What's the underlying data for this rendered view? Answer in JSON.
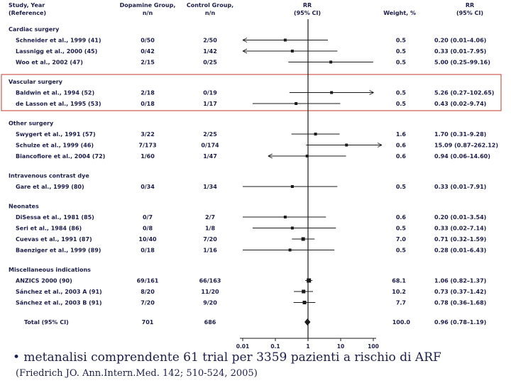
{
  "chart_data": {
    "type": "forest",
    "header": {
      "study_line1": "Study, Year",
      "study_line2": "(Reference)",
      "dop_line1": "Dopamine Group,",
      "dop_line2": "n/n",
      "ctl_line1": "Control Group,",
      "ctl_line2": "n/n",
      "rr_line1": "RR",
      "rr_line2": "(95% CI)",
      "weight": "Weight, %",
      "rrci_line1": "RR",
      "rrci_line2": "(95% CI)"
    },
    "groups": [
      {
        "name": "Cardiac surgery",
        "studies": [
          {
            "label": "Schneider et al., 1999 (41)",
            "dopamine": "0/50",
            "control": "2/50",
            "weight": "0.5",
            "ci_text": "0.20 (0.01–4.06)",
            "rr": 0.2,
            "lo": 0.01,
            "hi": 4.06,
            "arrow_lo": true,
            "arrow_hi": false
          },
          {
            "label": "Lassnigg et al., 2000 (45)",
            "dopamine": "0/42",
            "control": "1/42",
            "weight": "0.5",
            "ci_text": "0.33 (0.01–7.95)",
            "rr": 0.33,
            "lo": 0.01,
            "hi": 7.95,
            "arrow_lo": true,
            "arrow_hi": false
          },
          {
            "label": "Woo et al., 2002 (47)",
            "dopamine": "2/15",
            "control": "0/25",
            "weight": "0.5",
            "ci_text": "5.00 (0.25–99.16)",
            "rr": 5.0,
            "lo": 0.25,
            "hi": 99.16,
            "arrow_lo": false,
            "arrow_hi": false
          }
        ]
      },
      {
        "name": "Vascular surgery",
        "studies": [
          {
            "label": "Baldwin et al., 1994 (52)",
            "dopamine": "2/18",
            "control": "0/19",
            "weight": "0.5",
            "ci_text": "5.26 (0.27–102.65)",
            "rr": 5.26,
            "lo": 0.27,
            "hi": 102.65,
            "arrow_lo": false,
            "arrow_hi": true
          },
          {
            "label": "de Lasson et al., 1995 (53)",
            "dopamine": "0/18",
            "control": "1/17",
            "weight": "0.5",
            "ci_text": "0.43 (0.02–9.74)",
            "rr": 0.43,
            "lo": 0.02,
            "hi": 9.74,
            "arrow_lo": false,
            "arrow_hi": false
          }
        ]
      },
      {
        "name": "Other surgery",
        "studies": [
          {
            "label": "Swygert et al., 1991 (57)",
            "dopamine": "3/22",
            "control": "2/25",
            "weight": "1.6",
            "ci_text": "1.70 (0.31–9.28)",
            "rr": 1.7,
            "lo": 0.31,
            "hi": 9.28,
            "arrow_lo": false,
            "arrow_hi": false
          },
          {
            "label": "Schulze et al., 1999 (46)",
            "dopamine": "7/173",
            "control": "0/174",
            "weight": "0.6",
            "ci_text": "15.09 (0.87–262.12)",
            "rr": 15.09,
            "lo": 0.87,
            "hi": 262.12,
            "arrow_lo": false,
            "arrow_hi": true
          },
          {
            "label": "Biancofiore et al., 2004 (72)",
            "dopamine": "1/60",
            "control": "1/47",
            "weight": "0.6",
            "ci_text": "0.94 (0.06–14.60)",
            "rr": 0.94,
            "lo": 0.06,
            "hi": 14.6,
            "arrow_lo": true,
            "arrow_hi": false
          }
        ]
      },
      {
        "name": "Intravenous contrast dye",
        "studies": [
          {
            "label": "Gare et al., 1999 (80)",
            "dopamine": "0/34",
            "control": "1/34",
            "weight": "0.5",
            "ci_text": "0.33 (0.01–7.91)",
            "rr": 0.33,
            "lo": 0.01,
            "hi": 7.91,
            "arrow_lo": false,
            "arrow_hi": false
          }
        ]
      },
      {
        "name": "Neonates",
        "studies": [
          {
            "label": "DiSessa et al., 1981 (85)",
            "dopamine": "0/7",
            "control": "2/7",
            "weight": "0.6",
            "ci_text": "0.20 (0.01–3.54)",
            "rr": 0.2,
            "lo": 0.01,
            "hi": 3.54,
            "arrow_lo": false,
            "arrow_hi": false
          },
          {
            "label": "Seri et al., 1984 (86)",
            "dopamine": "0/8",
            "control": "1/8",
            "weight": "0.5",
            "ci_text": "0.33 (0.02–7.14)",
            "rr": 0.33,
            "lo": 0.02,
            "hi": 7.14,
            "arrow_lo": false,
            "arrow_hi": false
          },
          {
            "label": "Cuevas et al., 1991 (87)",
            "dopamine": "10/40",
            "control": "7/20",
            "weight": "7.0",
            "ci_text": "0.71 (0.32–1.59)",
            "rr": 0.71,
            "lo": 0.32,
            "hi": 1.59,
            "arrow_lo": false,
            "arrow_hi": false
          },
          {
            "label": "Baenziger et al., 1999 (89)",
            "dopamine": "0/18",
            "control": "1/16",
            "weight": "0.5",
            "ci_text": "0.28 (0.01–6.43)",
            "rr": 0.28,
            "lo": 0.01,
            "hi": 6.43,
            "arrow_lo": false,
            "arrow_hi": false
          }
        ]
      },
      {
        "name": "Miscellaneous indications",
        "studies": [
          {
            "label": "ANZICS 2000 (90)",
            "dopamine": "69/161",
            "control": "66/163",
            "weight": "68.1",
            "ci_text": "1.06 (0.82–1.37)",
            "rr": 1.06,
            "lo": 0.82,
            "hi": 1.37,
            "arrow_lo": false,
            "arrow_hi": false
          },
          {
            "label": "Sánchez et al., 2003 A (91)",
            "dopamine": "8/20",
            "control": "11/20",
            "weight": "10.2",
            "ci_text": "0.73 (0.37–1.42)",
            "rr": 0.73,
            "lo": 0.37,
            "hi": 1.42,
            "arrow_lo": false,
            "arrow_hi": false
          },
          {
            "label": "Sánchez et al., 2003 B (91)",
            "dopamine": "7/20",
            "control": "9/20",
            "weight": "7.7",
            "ci_text": "0.78 (0.36–1.68)",
            "rr": 0.78,
            "lo": 0.36,
            "hi": 1.68,
            "arrow_lo": false,
            "arrow_hi": false
          }
        ]
      }
    ],
    "total": {
      "label": "Total (95% CI)",
      "dopamine": "701",
      "control": "686",
      "weight": "100.0",
      "ci_text": "0.96 (0.78–1.19)",
      "rr": 0.96,
      "lo": 0.78,
      "hi": 1.19
    },
    "x_axis": {
      "scale": "log",
      "ticks": [
        0.01,
        0.1,
        1,
        10,
        100
      ],
      "tick_labels": [
        "0.01",
        "0.1",
        "1",
        "10",
        "100"
      ],
      "xlim": [
        0.01,
        100
      ]
    },
    "highlight_group": "Vascular surgery",
    "colors": {
      "text": "#1d1d4a",
      "highlight_box": "#c0392b",
      "marker": "#1a1a1a"
    }
  },
  "caption": "• metanalisi comprendente 61 trial per 3359 pazienti a rischio di ARF",
  "citation": "(Friedrich JO. Ann.Intern.Med. 142; 510-524, 2005)"
}
